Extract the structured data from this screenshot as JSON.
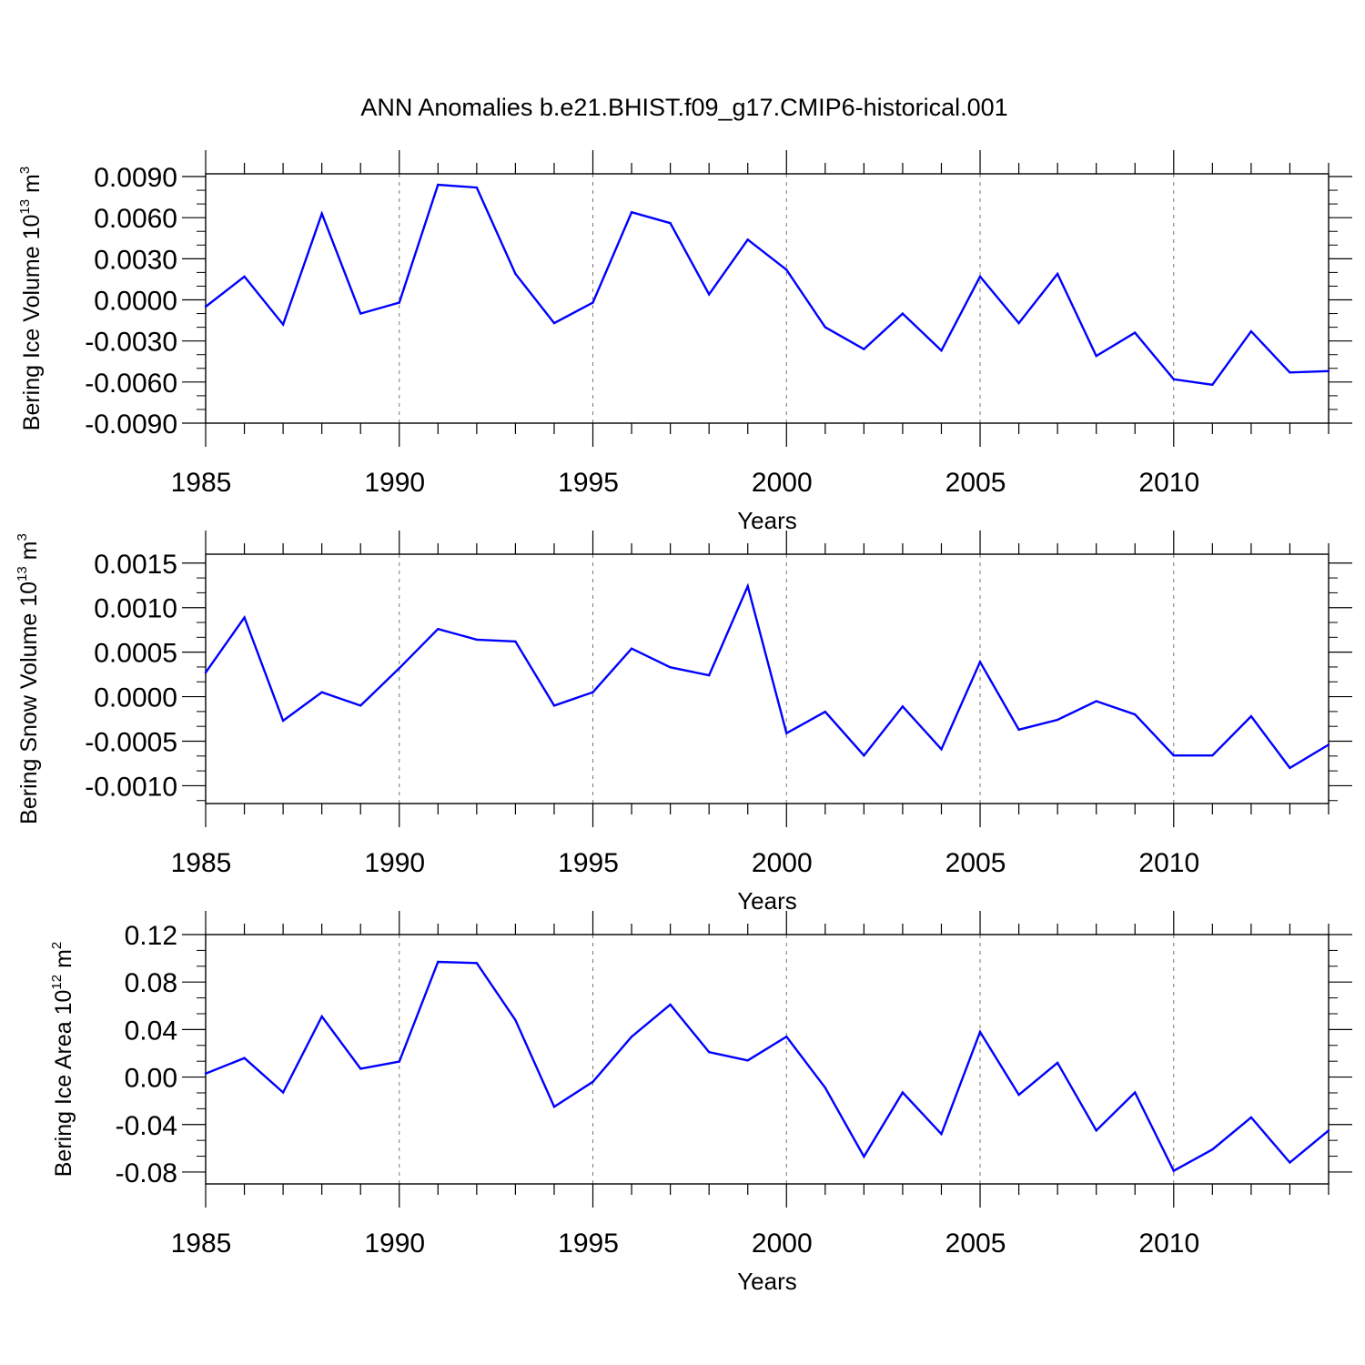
{
  "figure": {
    "title": "ANN Anomalies b.e21.BHIST.f09_g17.CMIP6-historical.001"
  },
  "chart_data": [
    {
      "type": "line",
      "xlabel": "Years",
      "ylabel": "Bering Ice Volume 10",
      "ylabel_exponent": "13",
      "ylabel_unit": "m",
      "ylabel_unit_exponent": "3",
      "xlim": [
        1985,
        2014
      ],
      "ylim": [
        -0.009,
        0.0092
      ],
      "xticks": [
        1985,
        1990,
        1995,
        2000,
        2005,
        2010
      ],
      "xtick_labels": [
        "1985",
        "1990",
        "1995",
        "2000",
        "2005",
        "2010"
      ],
      "yticks": [
        -0.009,
        -0.006,
        -0.003,
        0,
        0.003,
        0.006,
        0.009
      ],
      "ytick_labels": [
        "-0.0090",
        "-0.0060",
        "-0.0030",
        "0.0000",
        "0.0030",
        "0.0060",
        "0.0090"
      ],
      "grid": "dashed vertical lines at labeled years",
      "line_color": "#0000ff",
      "x": [
        1985,
        1986,
        1987,
        1988,
        1989,
        1990,
        1991,
        1992,
        1993,
        1994,
        1995,
        1996,
        1997,
        1998,
        1999,
        2000,
        2001,
        2002,
        2003,
        2004,
        2005,
        2006,
        2007,
        2008,
        2009,
        2010,
        2011,
        2012,
        2013,
        2014
      ],
      "values": [
        -0.0005,
        0.0017,
        -0.0018,
        0.0063,
        -0.001,
        -0.0002,
        0.0084,
        0.0082,
        0.0019,
        -0.0017,
        -0.0002,
        0.0064,
        0.0056,
        0.0004,
        0.0044,
        0.0022,
        -0.002,
        -0.0036,
        -0.001,
        -0.0037,
        0.0017,
        -0.0017,
        0.0019,
        -0.0041,
        -0.0024,
        -0.0058,
        -0.0062,
        -0.0023,
        -0.0053,
        -0.0052
      ]
    },
    {
      "type": "line",
      "xlabel": "Years",
      "ylabel": "Bering Snow Volume 10",
      "ylabel_exponent": "13",
      "ylabel_unit": "m",
      "ylabel_unit_exponent": "3",
      "xlim": [
        1985,
        2014
      ],
      "ylim": [
        -0.0012,
        0.0016
      ],
      "xticks": [
        1985,
        1990,
        1995,
        2000,
        2005,
        2010
      ],
      "xtick_labels": [
        "1985",
        "1990",
        "1995",
        "2000",
        "2005",
        "2010"
      ],
      "yticks": [
        -0.001,
        -0.0005,
        0,
        0.0005,
        0.001,
        0.0015
      ],
      "ytick_labels": [
        "-0.0010",
        "-0.0005",
        "0.0000",
        "0.0005",
        "0.0010",
        "0.0015"
      ],
      "grid": "dashed vertical lines at labeled years",
      "line_color": "#0000ff",
      "x": [
        1985,
        1986,
        1987,
        1988,
        1989,
        1990,
        1991,
        1992,
        1993,
        1994,
        1995,
        1996,
        1997,
        1998,
        1999,
        2000,
        2001,
        2002,
        2003,
        2004,
        2005,
        2006,
        2007,
        2008,
        2009,
        2010,
        2011,
        2012,
        2013,
        2014
      ],
      "values": [
        0.00027,
        0.00089,
        -0.00027,
        5e-05,
        -0.0001,
        0.00032,
        0.00076,
        0.00064,
        0.00062,
        -0.0001,
        5e-05,
        0.00054,
        0.00033,
        0.00024,
        0.00124,
        -0.00041,
        -0.00017,
        -0.00066,
        -0.00011,
        -0.00059,
        0.00039,
        -0.00037,
        -0.00026,
        -5e-05,
        -0.0002,
        -0.00066,
        -0.00066,
        -0.00022,
        -0.0008,
        -0.00054
      ]
    },
    {
      "type": "line",
      "xlabel": "Years",
      "ylabel": "Bering Ice Area 10",
      "ylabel_exponent": "12",
      "ylabel_unit": "m",
      "ylabel_unit_exponent": "2",
      "xlim": [
        1985,
        2014
      ],
      "ylim": [
        -0.09,
        0.12
      ],
      "xticks": [
        1985,
        1990,
        1995,
        2000,
        2005,
        2010
      ],
      "xtick_labels": [
        "1985",
        "1990",
        "1995",
        "2000",
        "2005",
        "2010"
      ],
      "yticks": [
        -0.08,
        -0.04,
        0,
        0.04,
        0.08,
        0.12
      ],
      "ytick_labels": [
        "-0.08",
        "-0.04",
        "0.00",
        "0.04",
        "0.08",
        "0.12"
      ],
      "grid": "dashed vertical lines at labeled years",
      "line_color": "#0000ff",
      "x": [
        1985,
        1986,
        1987,
        1988,
        1989,
        1990,
        1991,
        1992,
        1993,
        1994,
        1995,
        1996,
        1997,
        1998,
        1999,
        2000,
        2001,
        2002,
        2003,
        2004,
        2005,
        2006,
        2007,
        2008,
        2009,
        2010,
        2011,
        2012,
        2013,
        2014
      ],
      "values": [
        0.003,
        0.016,
        -0.013,
        0.051,
        0.007,
        0.013,
        0.097,
        0.096,
        0.048,
        -0.025,
        -0.004,
        0.034,
        0.061,
        0.021,
        0.014,
        0.034,
        -0.009,
        -0.067,
        -0.013,
        -0.048,
        0.038,
        -0.015,
        0.012,
        -0.045,
        -0.013,
        -0.079,
        -0.061,
        -0.034,
        -0.072,
        -0.045
      ]
    }
  ]
}
